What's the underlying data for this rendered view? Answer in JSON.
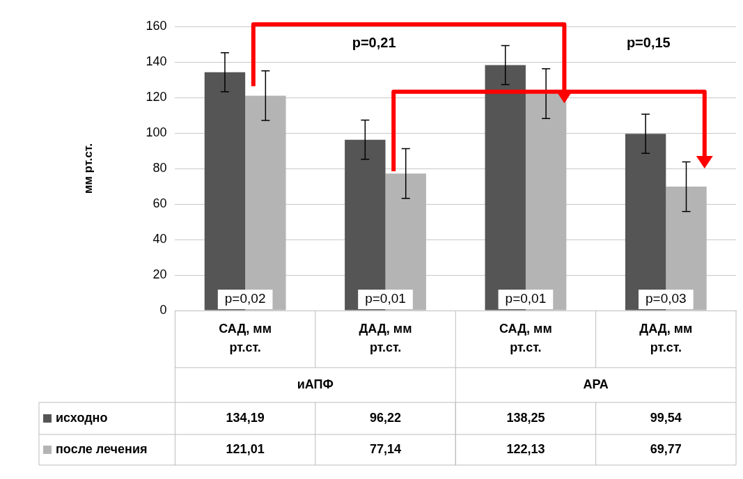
{
  "chart_data": {
    "type": "bar",
    "ylabel": "мм рт.ст.",
    "categories": [
      "САД, мм рт.ст.",
      "ДАД, мм рт.ст.",
      "САД, мм рт.ст.",
      "ДАД, мм рт.ст."
    ],
    "series": [
      {
        "name": "исходно",
        "color": "#555555",
        "values": [
          134.19,
          96.22,
          138.25,
          99.54
        ],
        "value_labels": [
          "134,19",
          "96,22",
          "138,25",
          "99,54"
        ],
        "errors": [
          11,
          11,
          11,
          11
        ]
      },
      {
        "name": "после лечения",
        "color": "#b4b4b4",
        "values": [
          121.01,
          77.14,
          122.13,
          69.77
        ],
        "value_labels": [
          "121,01",
          "77,14",
          "122,13",
          "69,77"
        ],
        "errors": [
          14,
          14,
          14,
          14
        ]
      }
    ],
    "ylim": [
      0,
      160
    ],
    "yticks": [
      0,
      20,
      40,
      60,
      80,
      100,
      120,
      140,
      160
    ],
    "grid": "y",
    "legend": "bottom left",
    "annotations": [
      "p=0,02",
      "p=0,01",
      "p=0,01",
      "p=0,03",
      "p=0,21",
      "p=0,15",
      "иАПФ",
      "АРА"
    ]
  }
}
